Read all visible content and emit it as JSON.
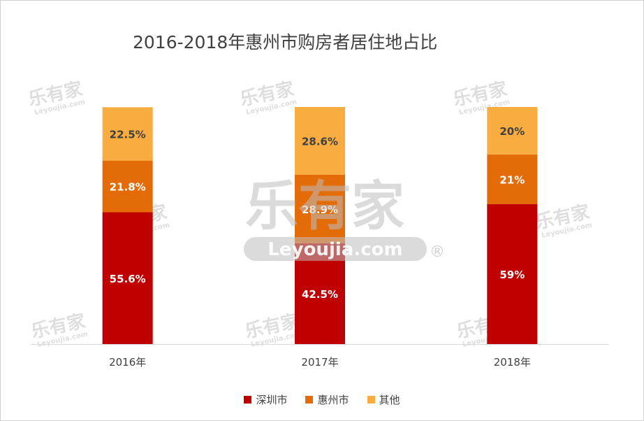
{
  "chart_data": {
    "type": "bar",
    "stacked": true,
    "title": "2016-2018年惠州市购房者居住地占比",
    "categories": [
      "2016年",
      "2017年",
      "2018年"
    ],
    "series": [
      {
        "name": "深圳市",
        "color": "#c00000",
        "values": [
          55.6,
          42.5,
          59
        ],
        "labels": [
          "55.6%",
          "42.5%",
          "59%"
        ]
      },
      {
        "name": "惠州市",
        "color": "#e36c09",
        "values": [
          21.8,
          28.9,
          21
        ],
        "labels": [
          "21.8%",
          "28.9%",
          "21%"
        ]
      },
      {
        "name": "其他",
        "color": "#f9ac3f",
        "values": [
          22.5,
          28.6,
          20
        ],
        "labels": [
          "22.5%",
          "28.6%",
          "20%"
        ]
      }
    ],
    "ylim": [
      0,
      100
    ],
    "legend_position": "bottom",
    "xlabel": "",
    "ylabel": ""
  },
  "watermark": {
    "brand": "乐有家",
    "site": "Leyoujia.com",
    "mark": "®"
  }
}
